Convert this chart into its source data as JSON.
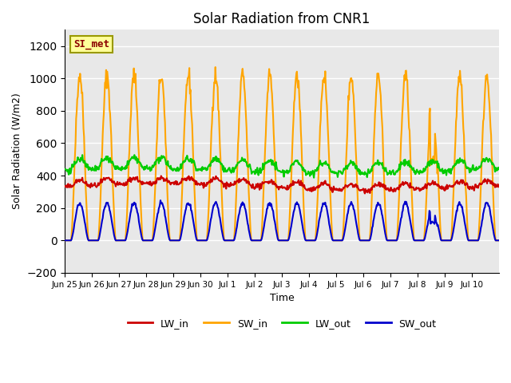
{
  "title": "Solar Radiation from CNR1",
  "xlabel": "Time",
  "ylabel": "Solar Radiation (W/m2)",
  "ylim": [
    -200,
    1300
  ],
  "yticks": [
    -200,
    0,
    200,
    400,
    600,
    800,
    1000,
    1200
  ],
  "annotation_text": "SI_met",
  "annotation_color": "#8B0000",
  "annotation_bg": "#FFFF99",
  "plot_bg": "#E8E8E8",
  "grid_color": "white",
  "series": {
    "LW_in": {
      "color": "#CC0000",
      "lw": 1.5
    },
    "SW_in": {
      "color": "#FFA500",
      "lw": 1.5
    },
    "LW_out": {
      "color": "#00CC00",
      "lw": 1.5
    },
    "SW_out": {
      "color": "#0000CC",
      "lw": 1.5
    }
  },
  "num_days": 15,
  "x_tick_labels": [
    "Jun 25",
    "Jun 26",
    "Jun 27",
    "Jun 28",
    "Jun 29",
    "Jun 30",
    "Jul 1",
    "Jul 2",
    "Jul 3",
    "Jul 4",
    "Jul 5",
    "Jul 6",
    "Jul 7",
    "Jul 8",
    "Jul 9",
    "Jul 10"
  ],
  "LW_in_base": 330,
  "LW_in_amp": 60,
  "LW_out_base": 430,
  "LW_out_amp": 80,
  "SW_in_peak": 1020,
  "SW_out_peak": 230,
  "special_day": 13,
  "special_SW_in_peak": 960
}
